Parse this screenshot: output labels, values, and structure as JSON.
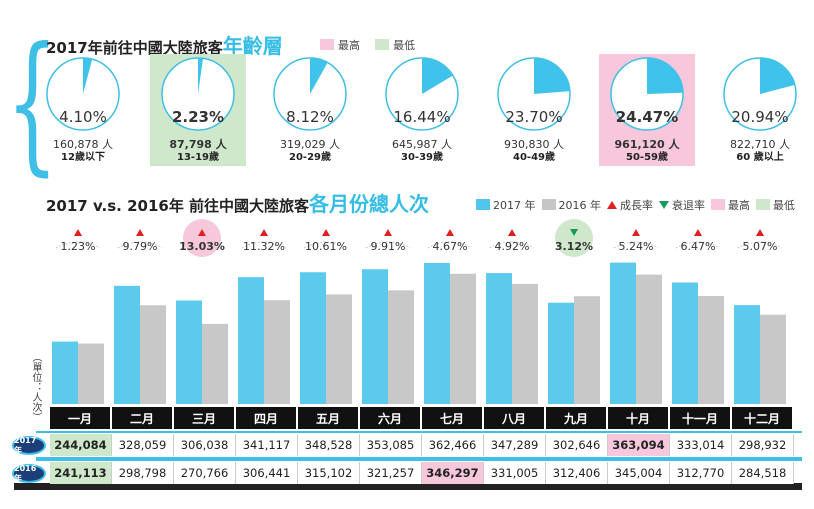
{
  "age_section": {
    "title_prefix": "2017年前往中國大陸旅客",
    "title_highlight": "年齡層",
    "legend": [
      {
        "label": "最高",
        "color": "#f7c7dc"
      },
      {
        "label": "最低",
        "color": "#cfe8cc"
      }
    ]
  },
  "monthly_section": {
    "title_prefix": "2017 v.s. 2016年 前往中國大陸旅客",
    "title_highlight": "各月份總人次",
    "legend": [
      {
        "label": "2017 年",
        "icon": "square",
        "color": "#4fc6ea"
      },
      {
        "label": "2016 年",
        "icon": "square",
        "color": "#c6c6c6"
      },
      {
        "label": "成長率",
        "icon": "triangle-up",
        "color": "#e02020"
      },
      {
        "label": "衰退率",
        "icon": "triangle-down",
        "color": "#1a9a5a"
      },
      {
        "label": "最高",
        "icon": "square",
        "color": "#f7c7dc"
      },
      {
        "label": "最低",
        "icon": "square",
        "color": "#cfe8cc"
      }
    ],
    "unit_label": "（單位：人次）",
    "row_labels": {
      "y2017": "2017年",
      "y2016": "2016年"
    }
  },
  "colors": {
    "accent": "#35bde6",
    "bar2017": "#5ccaec",
    "bar2016": "#c8c8c8",
    "high": "#f7c7dc",
    "low": "#cfe8cc",
    "grow": "#e02020",
    "decline": "#1a9a5a"
  },
  "chart_data": [
    {
      "type": "pie",
      "title": "2017年前往中國大陸旅客年齡層",
      "groups": [
        {
          "label": "12歲以下",
          "percent": 4.1,
          "pct_text": "4.10%",
          "count_text": "160,878 人",
          "mark": ""
        },
        {
          "label": "13-19歲",
          "percent": 2.23,
          "pct_text": "2.23%",
          "count_text": "87,798 人",
          "mark": "low"
        },
        {
          "label": "20-29歲",
          "percent": 8.12,
          "pct_text": "8.12%",
          "count_text": "319,029 人",
          "mark": ""
        },
        {
          "label": "30-39歲",
          "percent": 16.44,
          "pct_text": "16.44%",
          "count_text": "645,987 人",
          "mark": ""
        },
        {
          "label": "40-49歲",
          "percent": 23.7,
          "pct_text": "23.70%",
          "count_text": "930,830 人",
          "mark": ""
        },
        {
          "label": "50-59歲",
          "percent": 24.47,
          "pct_text": "24.47%",
          "count_text": "961,120 人",
          "mark": "high"
        },
        {
          "label": "60 歲以上",
          "percent": 20.94,
          "pct_text": "20.94%",
          "count_text": "822,710 人",
          "mark": ""
        }
      ]
    },
    {
      "type": "bar",
      "title": "2017 v.s. 2016年 前往中國大陸旅客各月份總人次",
      "categories": [
        "一月",
        "二月",
        "三月",
        "四月",
        "五月",
        "六月",
        "七月",
        "八月",
        "九月",
        "十月",
        "十一月",
        "十二月"
      ],
      "series": [
        {
          "name": "2017 年",
          "values": [
            244084,
            328059,
            306038,
            341117,
            348528,
            353085,
            362466,
            347289,
            302646,
            363094,
            333014,
            298932
          ],
          "texts": [
            "244,084",
            "328,059",
            "306,038",
            "341,117",
            "348,528",
            "353,085",
            "362,466",
            "347,289",
            "302,646",
            "363,094",
            "333,014",
            "298,932"
          ],
          "marks": [
            "low",
            "",
            "",
            "",
            "",
            "",
            "",
            "",
            "",
            "high",
            "",
            ""
          ]
        },
        {
          "name": "2016 年",
          "values": [
            241113,
            298798,
            270766,
            306441,
            315102,
            321257,
            346297,
            331005,
            312406,
            345004,
            312770,
            284518
          ],
          "texts": [
            "241,113",
            "298,798",
            "270,766",
            "306,441",
            "315,102",
            "321,257",
            "346,297",
            "331,005",
            "312,406",
            "345,004",
            "312,770",
            "284,518"
          ],
          "marks": [
            "low",
            "",
            "",
            "",
            "",
            "",
            "high",
            "",
            "",
            "",
            "",
            ""
          ]
        }
      ],
      "growth": [
        {
          "text": "1.23%",
          "dir": "up",
          "mark": ""
        },
        {
          "text": "9.79%",
          "dir": "up",
          "mark": ""
        },
        {
          "text": "13.03%",
          "dir": "up",
          "mark": "high"
        },
        {
          "text": "11.32%",
          "dir": "up",
          "mark": ""
        },
        {
          "text": "10.61%",
          "dir": "up",
          "mark": ""
        },
        {
          "text": "9.91%",
          "dir": "up",
          "mark": ""
        },
        {
          "text": "4.67%",
          "dir": "up",
          "mark": ""
        },
        {
          "text": "4.92%",
          "dir": "up",
          "mark": ""
        },
        {
          "text": "3.12%",
          "dir": "down",
          "mark": "low"
        },
        {
          "text": "5.24%",
          "dir": "up",
          "mark": ""
        },
        {
          "text": "6.47%",
          "dir": "up",
          "mark": ""
        },
        {
          "text": "5.07%",
          "dir": "up",
          "mark": ""
        }
      ],
      "ylim": [
        150000,
        370000
      ]
    }
  ]
}
